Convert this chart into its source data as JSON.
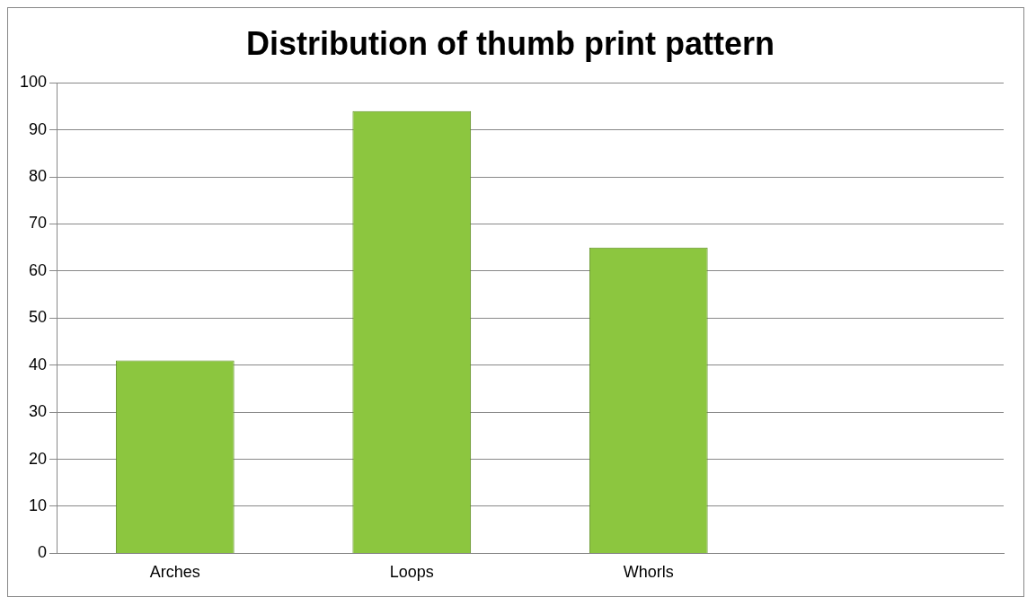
{
  "chart_data": {
    "type": "bar",
    "title": "Distribution of thumb print pattern",
    "categories": [
      "Arches",
      "Loops",
      "Whorls",
      null
    ],
    "values": [
      41,
      94,
      65,
      null
    ],
    "color": "#8cc63f",
    "ylim": [
      0,
      100
    ],
    "yticks": [
      0,
      10,
      20,
      30,
      40,
      50,
      60,
      70,
      80,
      90,
      100
    ],
    "grid": "y",
    "legend": false
  }
}
